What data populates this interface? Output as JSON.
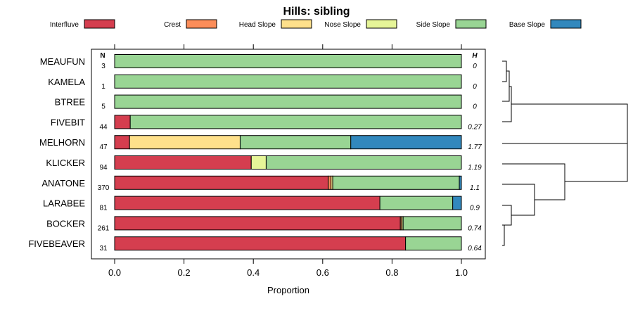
{
  "chart_data": {
    "type": "bar",
    "orientation": "horizontal",
    "stacked": true,
    "title": "Hills: sibling",
    "xlabel": "Proportion",
    "ylabel": "",
    "xlim": [
      0,
      1
    ],
    "xticks": [
      "0.0",
      "0.2",
      "0.4",
      "0.6",
      "0.8",
      "1.0"
    ],
    "xtick_values": [
      0,
      0.2,
      0.4,
      0.6,
      0.8,
      1.0
    ],
    "grid": false,
    "legend_position": "top",
    "n_header": "N",
    "h_header": "H",
    "legend": [
      {
        "name": "Interfluve",
        "color": "#D53E4F"
      },
      {
        "name": "Crest",
        "color": "#FC8D59"
      },
      {
        "name": "Head Slope",
        "color": "#FEE08B"
      },
      {
        "name": "Nose Slope",
        "color": "#E6F598"
      },
      {
        "name": "Side Slope",
        "color": "#99D594"
      },
      {
        "name": "Base Slope",
        "color": "#3288BD"
      }
    ],
    "categories": [
      "MEAUFUN",
      "KAMELA",
      "BTREE",
      "FIVEBIT",
      "MELHORN",
      "KLICKER",
      "ANATONE",
      "LARABEE",
      "BOCKER",
      "FIVEBEAVER"
    ],
    "n": [
      "3",
      "1",
      "5",
      "44",
      "47",
      "94",
      "370",
      "81",
      "261",
      "31"
    ],
    "h": [
      "0",
      "0",
      "0",
      "0.27",
      "1.77",
      "1.19",
      "1.1",
      "0.9",
      "0.74",
      "0.64"
    ],
    "series": [
      {
        "name": "Interfluve",
        "values": [
          0,
          0,
          0,
          0.045,
          0.043,
          0.394,
          0.616,
          0.765,
          0.824,
          0.839
        ]
      },
      {
        "name": "Crest",
        "values": [
          0,
          0,
          0,
          0,
          0,
          0,
          0.008,
          0,
          0.004,
          0
        ]
      },
      {
        "name": "Head Slope",
        "values": [
          0,
          0,
          0,
          0,
          0.319,
          0,
          0.005,
          0,
          0,
          0
        ]
      },
      {
        "name": "Nose Slope",
        "values": [
          0,
          0,
          0,
          0,
          0,
          0.043,
          0,
          0,
          0.004,
          0
        ]
      },
      {
        "name": "Side Slope",
        "values": [
          1,
          1,
          1,
          0.955,
          0.319,
          0.563,
          0.365,
          0.21,
          0.168,
          0.161
        ]
      },
      {
        "name": "Base Slope",
        "values": [
          0,
          0,
          0,
          0,
          0.319,
          0,
          0.006,
          0.025,
          0,
          0
        ]
      }
    ],
    "dendrogram_order": [
      "MEAUFUN",
      "KAMELA",
      "BTREE",
      "FIVEBIT",
      "MELHORN",
      "KLICKER",
      "ANATONE",
      "LARABEE",
      "BOCKER",
      "FIVEBEAVER"
    ]
  }
}
